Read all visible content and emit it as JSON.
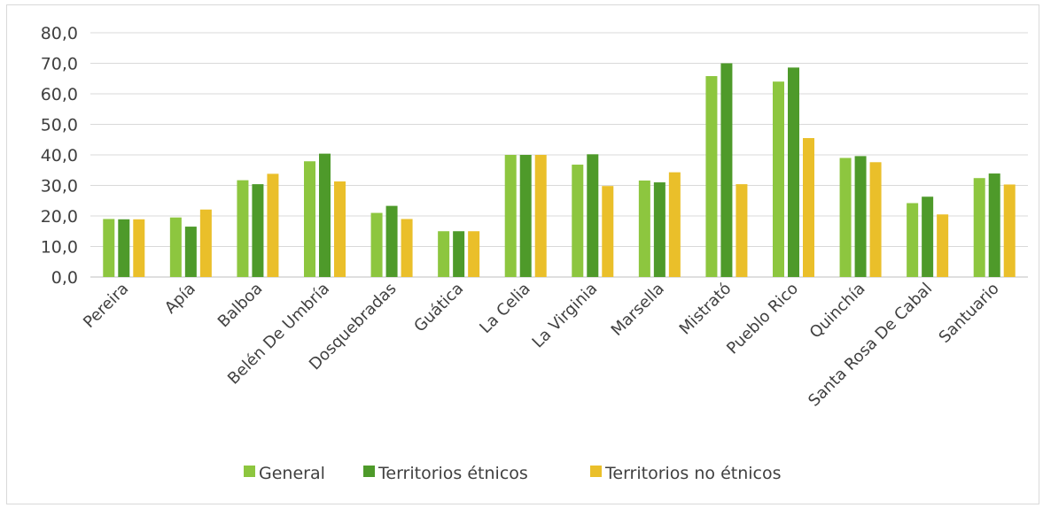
{
  "chart_data": {
    "type": "bar",
    "categories": [
      "Pereira",
      "Apía",
      "Balboa",
      "Belén De Umbría",
      "Dosquebradas",
      "Guática",
      "La Celia",
      "La Virginia",
      "Marsella",
      "Mistrató",
      "Pueblo Rico",
      "Quinchía",
      "Santa Rosa De Cabal",
      "Santuario"
    ],
    "series": [
      {
        "name": "General",
        "color": "#8dc63f",
        "values": [
          19.0,
          19.5,
          31.7,
          37.9,
          21.0,
          15.0,
          40.0,
          36.8,
          31.6,
          65.8,
          64.0,
          39.0,
          24.2,
          32.4
        ]
      },
      {
        "name": "Territorios étnicos",
        "color": "#4e9a2a",
        "values": [
          18.9,
          16.5,
          30.4,
          40.4,
          23.3,
          15.0,
          40.0,
          40.2,
          31.0,
          70.0,
          68.6,
          39.6,
          26.3,
          33.9
        ]
      },
      {
        "name": "Territorios no étnicos",
        "color": "#eabf2a",
        "values": [
          18.9,
          22.1,
          33.8,
          31.3,
          19.0,
          15.0,
          40.0,
          29.8,
          34.3,
          30.4,
          45.5,
          37.6,
          20.5,
          30.3
        ]
      }
    ],
    "yticks": [
      "0,0",
      "10,0",
      "20,0",
      "30,0",
      "40,0",
      "50,0",
      "60,0",
      "70,0",
      "80,0"
    ],
    "ylim": [
      0,
      80
    ],
    "grid": true,
    "legend_position": "bottom",
    "title": "",
    "xlabel": "",
    "ylabel": ""
  }
}
